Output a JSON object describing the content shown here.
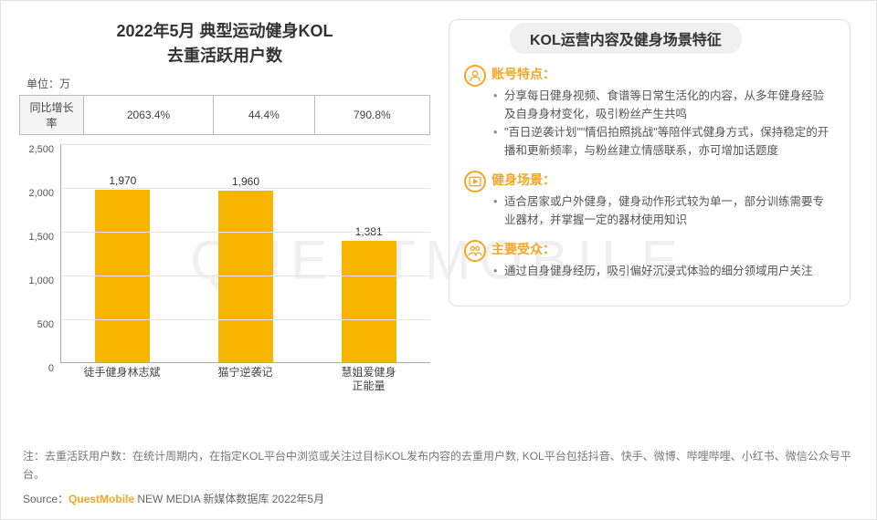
{
  "watermark_text": "QUESTMOBILE",
  "chart": {
    "type": "bar",
    "title_line1": "2022年5月 典型运动健身KOL",
    "title_line2": "去重活跃用户数",
    "unit_label": "单位：万",
    "growth_row_label": "同比增长率",
    "growth_values": [
      "2063.4%",
      "44.4%",
      "790.8%"
    ],
    "categories": [
      "徒手健身林志斌",
      "猫宁逆袭记",
      "慧姐爱健身\n正能量"
    ],
    "values": [
      1970,
      1960,
      1381
    ],
    "value_labels": [
      "1,970",
      "1,960",
      "1,381"
    ],
    "bar_color": "#f7b500",
    "ylim": [
      0,
      2500
    ],
    "ytick_step": 500,
    "yticks": [
      "0",
      "500",
      "1,000",
      "1,500",
      "2,000",
      "2,500"
    ],
    "grid_color": "#e8e8e8",
    "axis_color": "#aaaaaa",
    "title_fontsize": 18,
    "label_fontsize": 12,
    "background_color": "#ffffff"
  },
  "panel": {
    "title": "KOL运营内容及健身场景特征",
    "sections": [
      {
        "icon": "person",
        "heading": "账号特点：",
        "bullets": [
          "分享每日健身视频、食谱等日常生活化的内容，从多年健身经验及自身身材变化，吸引粉丝产生共鸣",
          "\"百日逆袭计划\"\"情侣拍照挑战\"等陪伴式健身方式，保持稳定的开播和更新频率，与粉丝建立情感联系，亦可增加话题度"
        ]
      },
      {
        "icon": "video",
        "heading": "健身场景：",
        "bullets": [
          "适合居家或户外健身，健身动作形式较为单一，部分训练需要专业器材，并掌握一定的器材使用知识"
        ]
      },
      {
        "icon": "audience",
        "heading": "主要受众：",
        "bullets": [
          "通过自身健身经历，吸引偏好沉浸式体验的细分领域用户关注"
        ]
      }
    ]
  },
  "footnote": "注：去重活跃用户数：在统计周期内，在指定KOL平台中浏览或关注过目标KOL发布内容的去重用户数, KOL平台包括抖音、快手、微博、哔哩哔哩、小红书、微信公众号平台。",
  "source_prefix": "Source：",
  "source_brand": "QuestMobile",
  "source_suffix": " NEW MEDIA 新媒体数据库 2022年5月"
}
